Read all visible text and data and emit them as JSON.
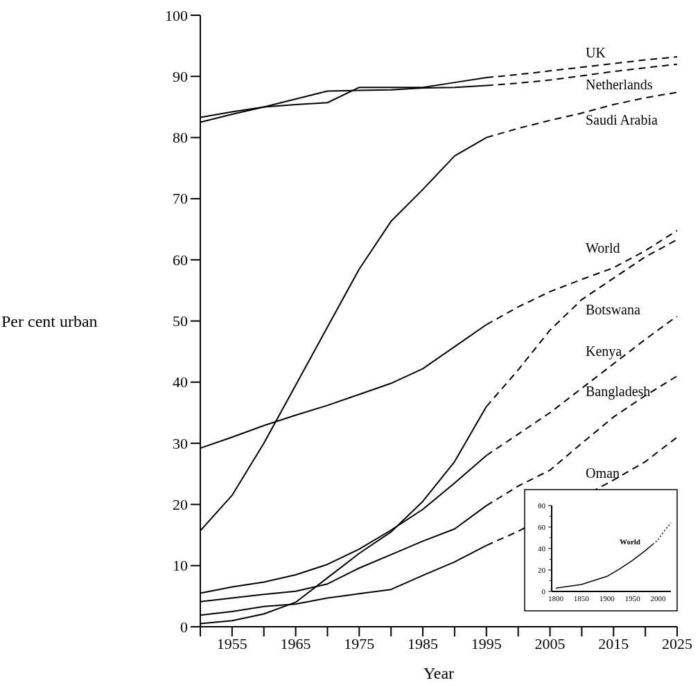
{
  "chart_data": [
    {
      "type": "line",
      "xlabel": "Year",
      "ylabel": "Per cent urban",
      "xlim": [
        1950,
        2025
      ],
      "ylim": [
        0,
        100
      ],
      "xticks": [
        {
          "value": 1950,
          "label": null
        },
        1955,
        {
          "value": 1960,
          "label": null
        },
        1965,
        {
          "value": 1970,
          "label": null
        },
        1975,
        {
          "value": 1980,
          "label": null
        },
        1985,
        {
          "value": 1990,
          "label": null
        },
        1995,
        {
          "value": 2000,
          "label": null
        },
        2005,
        {
          "value": 2010,
          "label": null
        },
        2015,
        {
          "value": 2020,
          "label": null
        },
        2025
      ],
      "yticks": [
        0,
        10,
        20,
        30,
        40,
        50,
        60,
        70,
        80,
        90,
        100
      ],
      "grid": false,
      "series": [
        {
          "color": "#000000",
          "line_style": "solid",
          "x": [
            1950,
            1955,
            1960,
            1965,
            1970,
            1975,
            1980,
            1985,
            1990,
            1995
          ],
          "values": [
            83.3,
            84.2,
            85.0,
            85.4,
            85.7,
            88.2,
            88.2,
            88.2,
            89.0,
            89.8
          ]
        },
        {
          "name": "UK",
          "color": "#000000",
          "line_style": "dashed",
          "x": [
            1995,
            2000,
            2005,
            2010,
            2015,
            2020,
            2025
          ],
          "values": [
            89.8,
            90.3,
            90.9,
            91.5,
            92.1,
            92.7,
            93.2
          ]
        },
        {
          "color": "#000000",
          "line_style": "solid",
          "x": [
            1950,
            1955,
            1960,
            1965,
            1970,
            1975,
            1980,
            1985,
            1990,
            1995
          ],
          "values": [
            82.5,
            83.8,
            85.0,
            86.3,
            87.6,
            87.7,
            87.8,
            88.1,
            88.2,
            88.5
          ]
        },
        {
          "name": "Netherlands",
          "color": "#000000",
          "line_style": "dashed",
          "x": [
            1995,
            2000,
            2005,
            2010,
            2015,
            2020,
            2025
          ],
          "values": [
            88.5,
            88.9,
            89.4,
            90.1,
            90.8,
            91.4,
            92.0
          ]
        },
        {
          "color": "#000000",
          "line_style": "solid",
          "x": [
            1950,
            1955,
            1960,
            1965,
            1970,
            1975,
            1980,
            1985,
            1990,
            1995
          ],
          "values": [
            15.7,
            21.5,
            30.0,
            39.5,
            49.0,
            58.5,
            66.3,
            71.5,
            77.0,
            80.0
          ]
        },
        {
          "name": "Saudi Arabia",
          "color": "#000000",
          "line_style": "dashed",
          "x": [
            1995,
            2000,
            2005,
            2010,
            2015,
            2020,
            2025
          ],
          "values": [
            80.0,
            81.5,
            82.8,
            84.0,
            85.4,
            86.5,
            87.4
          ]
        },
        {
          "color": "#000000",
          "line_style": "solid",
          "x": [
            1950,
            1955,
            1960,
            1965,
            1970,
            1975,
            1980,
            1985,
            1990,
            1995
          ],
          "values": [
            29.2,
            31.0,
            32.9,
            34.6,
            36.2,
            38.0,
            39.8,
            42.2,
            45.8,
            49.4
          ]
        },
        {
          "name": "World",
          "color": "#000000",
          "line_style": "dashed",
          "x": [
            1995,
            2000,
            2005,
            2010,
            2015,
            2020,
            2025
          ],
          "values": [
            49.4,
            52.3,
            54.8,
            56.8,
            58.7,
            61.5,
            64.8
          ]
        },
        {
          "color": "#000000",
          "line_style": "solid",
          "x": [
            1950,
            1955,
            1960,
            1965,
            1970,
            1975,
            1980,
            1985,
            1990,
            1995
          ],
          "values": [
            0.5,
            1.0,
            2.1,
            4.0,
            8.0,
            12.0,
            15.5,
            20.5,
            27.0,
            36.0
          ]
        },
        {
          "name": "Botswana",
          "color": "#000000",
          "line_style": "dashed",
          "x": [
            1995,
            2000,
            2005,
            2010,
            2015,
            2020,
            2025
          ],
          "values": [
            36.0,
            42.0,
            48.5,
            53.5,
            57.0,
            60.5,
            63.3
          ]
        },
        {
          "color": "#000000",
          "line_style": "solid",
          "x": [
            1950,
            1955,
            1960,
            1965,
            1970,
            1975,
            1980,
            1985,
            1990,
            1995
          ],
          "values": [
            5.5,
            6.5,
            7.3,
            8.5,
            10.2,
            12.7,
            15.8,
            19.2,
            23.5,
            28.0
          ]
        },
        {
          "name": "Kenya",
          "color": "#000000",
          "line_style": "dashed",
          "x": [
            1995,
            2000,
            2005,
            2010,
            2015,
            2020,
            2025
          ],
          "values": [
            28.0,
            31.5,
            35.0,
            39.0,
            43.0,
            47.0,
            50.8
          ]
        },
        {
          "color": "#000000",
          "line_style": "solid",
          "x": [
            1950,
            1955,
            1960,
            1965,
            1970,
            1975,
            1980,
            1985,
            1990,
            1995
          ],
          "values": [
            4.1,
            4.7,
            5.3,
            5.8,
            7.0,
            9.6,
            11.8,
            14.0,
            16.0,
            19.8
          ]
        },
        {
          "name": "Bangladesh",
          "color": "#000000",
          "line_style": "dashed",
          "x": [
            1995,
            2000,
            2005,
            2010,
            2015,
            2020,
            2025
          ],
          "values": [
            19.8,
            23.0,
            25.6,
            30.0,
            34.3,
            37.8,
            41.0
          ]
        },
        {
          "color": "#000000",
          "line_style": "solid",
          "x": [
            1950,
            1955,
            1960,
            1965,
            1970,
            1975,
            1980,
            1985,
            1990,
            1995
          ],
          "values": [
            1.9,
            2.5,
            3.3,
            3.7,
            4.7,
            5.4,
            6.1,
            8.4,
            10.6,
            13.3
          ]
        },
        {
          "name": "Oman",
          "color": "#000000",
          "line_style": "dashed",
          "x": [
            1995,
            2000,
            2015,
            2020,
            2025
          ],
          "values": [
            13.3,
            15.6,
            24.0,
            27.0,
            31.0
          ]
        }
      ]
    },
    {
      "type": "line",
      "xlim": [
        1792,
        2025
      ],
      "ylim": [
        0,
        80
      ],
      "xticks": [
        1800,
        1850,
        1900,
        1950,
        2000
      ],
      "yticks": [
        0,
        {
          "value": 10,
          "label": null
        },
        20,
        {
          "value": 30,
          "label": null
        },
        40,
        {
          "value": 50,
          "label": null
        },
        60,
        {
          "value": 70,
          "label": null
        },
        80
      ],
      "grid": false,
      "series": [
        {
          "name": "World",
          "color": "#000000",
          "line_style": "solid",
          "x": [
            1800,
            1850,
            1900,
            1925,
            1950,
            1975,
            1990
          ],
          "values": [
            3.0,
            6.5,
            14.0,
            21.0,
            29.0,
            38.0,
            44.0
          ]
        },
        {
          "color": "#000000",
          "line_style": "dotted",
          "x": [
            1990,
            2000,
            2010,
            2025
          ],
          "values": [
            44.0,
            48.0,
            55.0,
            64.0
          ]
        }
      ]
    }
  ]
}
